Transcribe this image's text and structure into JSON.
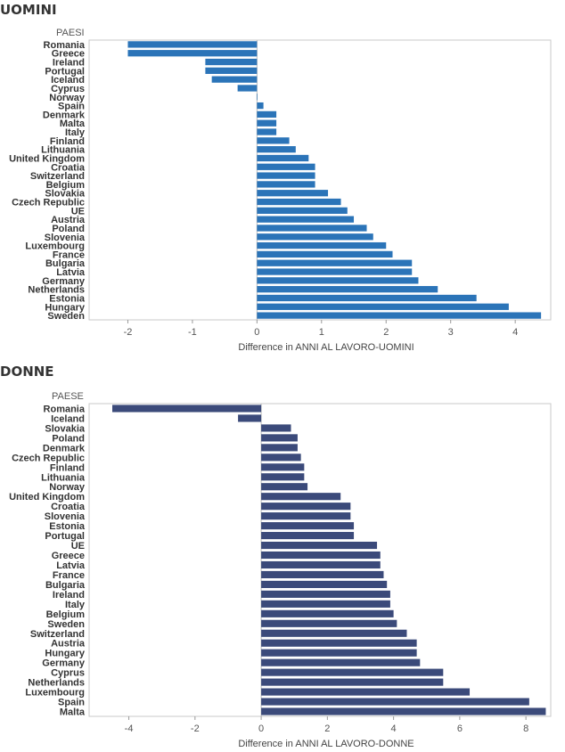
{
  "sections": {
    "men_title": "UOMINI",
    "women_title": "DONNE"
  },
  "colors": {
    "men_bar": "#2b74b8",
    "women_bar": "#3b4a7a",
    "frame": "#c8c8c8"
  },
  "chart_data": [
    {
      "type": "bar",
      "orientation": "horizontal",
      "title": "",
      "column_header": "PAESI",
      "xlabel": "Difference in ANNI AL LAVORO-UOMINI",
      "xlim": [
        -2.6,
        4.55
      ],
      "xticks": [
        -2,
        -1,
        0,
        1,
        2,
        3,
        4
      ],
      "grid": false,
      "categories": [
        "Romania",
        "Greece",
        "Ireland",
        "Portugal",
        "Iceland",
        "Cyprus",
        "Norway",
        "Spain",
        "Denmark",
        "Malta",
        "Italy",
        "Finland",
        "Lithuania",
        "United Kingdom",
        "Croatia",
        "Switzerland",
        "Belgium",
        "Slovakia",
        "Czech Republic",
        "UE",
        "Austria",
        "Poland",
        "Slovenia",
        "Luxembourg",
        "France",
        "Bulgaria",
        "Latvia",
        "Germany",
        "Netherlands",
        "Estonia",
        "Hungary",
        "Sweden"
      ],
      "values": [
        -2.0,
        -2.0,
        -0.8,
        -0.8,
        -0.7,
        -0.3,
        0.0,
        0.1,
        0.3,
        0.3,
        0.3,
        0.5,
        0.6,
        0.8,
        0.9,
        0.9,
        0.9,
        1.1,
        1.3,
        1.4,
        1.5,
        1.7,
        1.8,
        2.0,
        2.1,
        2.4,
        2.4,
        2.5,
        2.8,
        3.4,
        3.9,
        4.4
      ]
    },
    {
      "type": "bar",
      "orientation": "horizontal",
      "title": "",
      "column_header": "PAESE",
      "xlabel": "Difference in ANNI AL LAVORO-DONNE",
      "xlim": [
        -5.2,
        8.75
      ],
      "xticks": [
        -4,
        -2,
        0,
        2,
        4,
        6,
        8
      ],
      "grid": false,
      "categories": [
        "Romania",
        "Iceland",
        "Slovakia",
        "Poland",
        "Denmark",
        "Czech Republic",
        "Finland",
        "Lithuania",
        "Norway",
        "United Kingdom",
        "Croatia",
        "Slovenia",
        "Estonia",
        "Portugal",
        "UE",
        "Greece",
        "Latvia",
        "France",
        "Bulgaria",
        "Ireland",
        "Italy",
        "Belgium",
        "Sweden",
        "Switzerland",
        "Austria",
        "Hungary",
        "Germany",
        "Cyprus",
        "Netherlands",
        "Luxembourg",
        "Spain",
        "Malta"
      ],
      "values": [
        -4.5,
        -0.7,
        0.9,
        1.1,
        1.1,
        1.2,
        1.3,
        1.3,
        1.4,
        2.4,
        2.7,
        2.7,
        2.8,
        2.8,
        3.5,
        3.6,
        3.6,
        3.7,
        3.8,
        3.9,
        3.9,
        4.0,
        4.1,
        4.4,
        4.7,
        4.7,
        4.8,
        5.5,
        5.5,
        6.3,
        8.1,
        8.6
      ]
    }
  ]
}
